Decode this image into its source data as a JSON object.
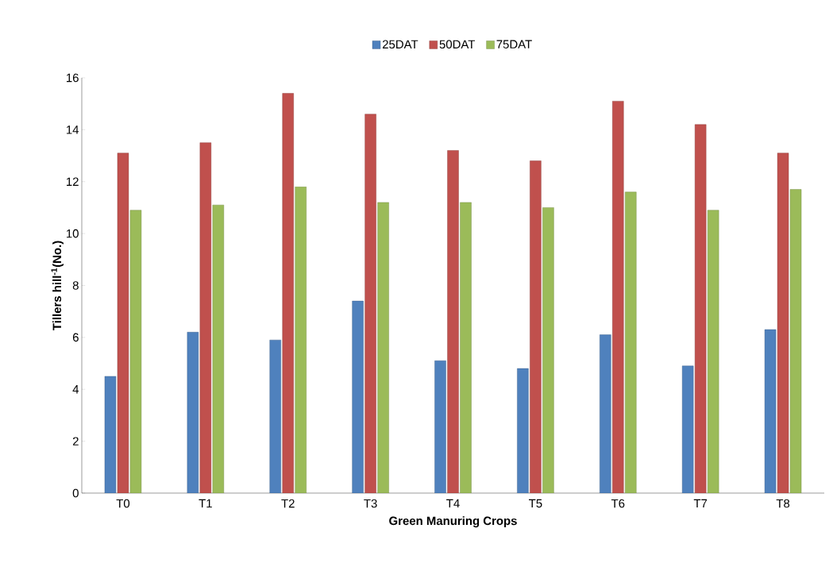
{
  "chart_data": {
    "type": "bar",
    "xlabel": "Green Manuring Crops",
    "ylabel": "Tillers hill$^{-1}$(No.)",
    "categories": [
      "T0",
      "T1",
      "T2",
      "T3",
      "T4",
      "T5",
      "T6",
      "T7",
      "T8"
    ],
    "series": [
      {
        "name": "25DAT",
        "color": "#4f81bd",
        "values": [
          4.5,
          6.2,
          5.9,
          7.4,
          5.1,
          4.8,
          6.1,
          4.9,
          6.3
        ]
      },
      {
        "name": "50DAT",
        "color": "#c0504d",
        "values": [
          13.1,
          13.5,
          15.4,
          14.6,
          13.2,
          12.8,
          15.1,
          14.2,
          13.1
        ]
      },
      {
        "name": "75DAT",
        "color": "#9bbb59",
        "values": [
          10.9,
          11.1,
          11.8,
          11.2,
          11.2,
          11.0,
          11.6,
          10.9,
          11.7
        ]
      }
    ],
    "ylim": [
      0,
      16
    ],
    "yticks": [
      0,
      2,
      4,
      6,
      8,
      10,
      12,
      14,
      16
    ],
    "legend": "top"
  }
}
